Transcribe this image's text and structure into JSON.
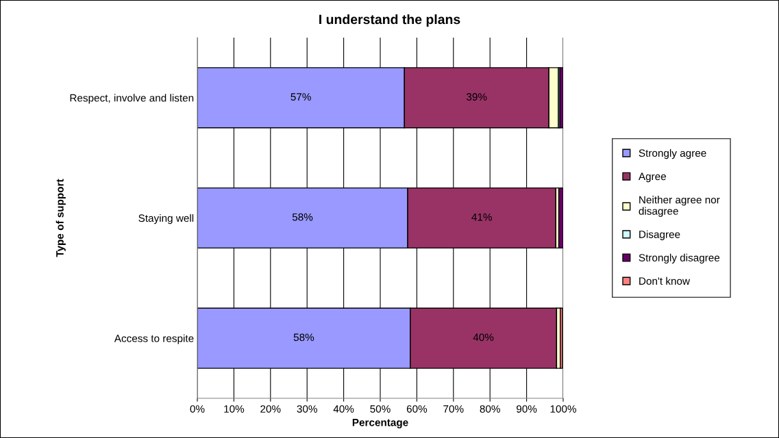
{
  "chart_data": {
    "type": "bar",
    "orientation": "horizontal",
    "stacked": true,
    "title": "I understand the plans",
    "xlabel": "Percentage",
    "ylabel": "Type of support",
    "categories": [
      "Respect, involve and listen",
      "Staying well",
      "Access to respite"
    ],
    "series": [
      {
        "name": "Strongly agree",
        "color": "#9999ff",
        "values": [
          56.6,
          57.5,
          58.2
        ],
        "value_labels": [
          "57%",
          "58%",
          "58%"
        ]
      },
      {
        "name": "Agree",
        "color": "#993366",
        "values": [
          39.5,
          40.5,
          40.0
        ],
        "value_labels": [
          "39%",
          "41%",
          "40%"
        ]
      },
      {
        "name": "Neither agree nor\ndisagree",
        "color": "#ffffcc",
        "values": [
          2.6,
          0.8,
          1.0
        ]
      },
      {
        "name": "Disagree",
        "color": "#ccffff",
        "values": [
          0.4,
          null,
          null
        ]
      },
      {
        "name": "Strongly disagree",
        "color": "#660066",
        "values": [
          0.9,
          1.2,
          null
        ]
      },
      {
        "name": "Don't know",
        "color": "#ff8080",
        "values": [
          null,
          null,
          0.6
        ]
      }
    ],
    "xlim": [
      0,
      100
    ],
    "xticks": [
      {
        "value": 0,
        "label": "0%"
      },
      {
        "value": 10,
        "label": "10%"
      },
      {
        "value": 20,
        "label": "20%"
      },
      {
        "value": 30,
        "label": "30%"
      },
      {
        "value": 40,
        "label": "40%"
      },
      {
        "value": 50,
        "label": "50%"
      },
      {
        "value": 60,
        "label": "60%"
      },
      {
        "value": 70,
        "label": "70%"
      },
      {
        "value": 80,
        "label": "80%"
      },
      {
        "value": 90,
        "label": "90%"
      },
      {
        "value": 100,
        "label": "100%"
      }
    ],
    "grid": "x",
    "legend": "right"
  }
}
